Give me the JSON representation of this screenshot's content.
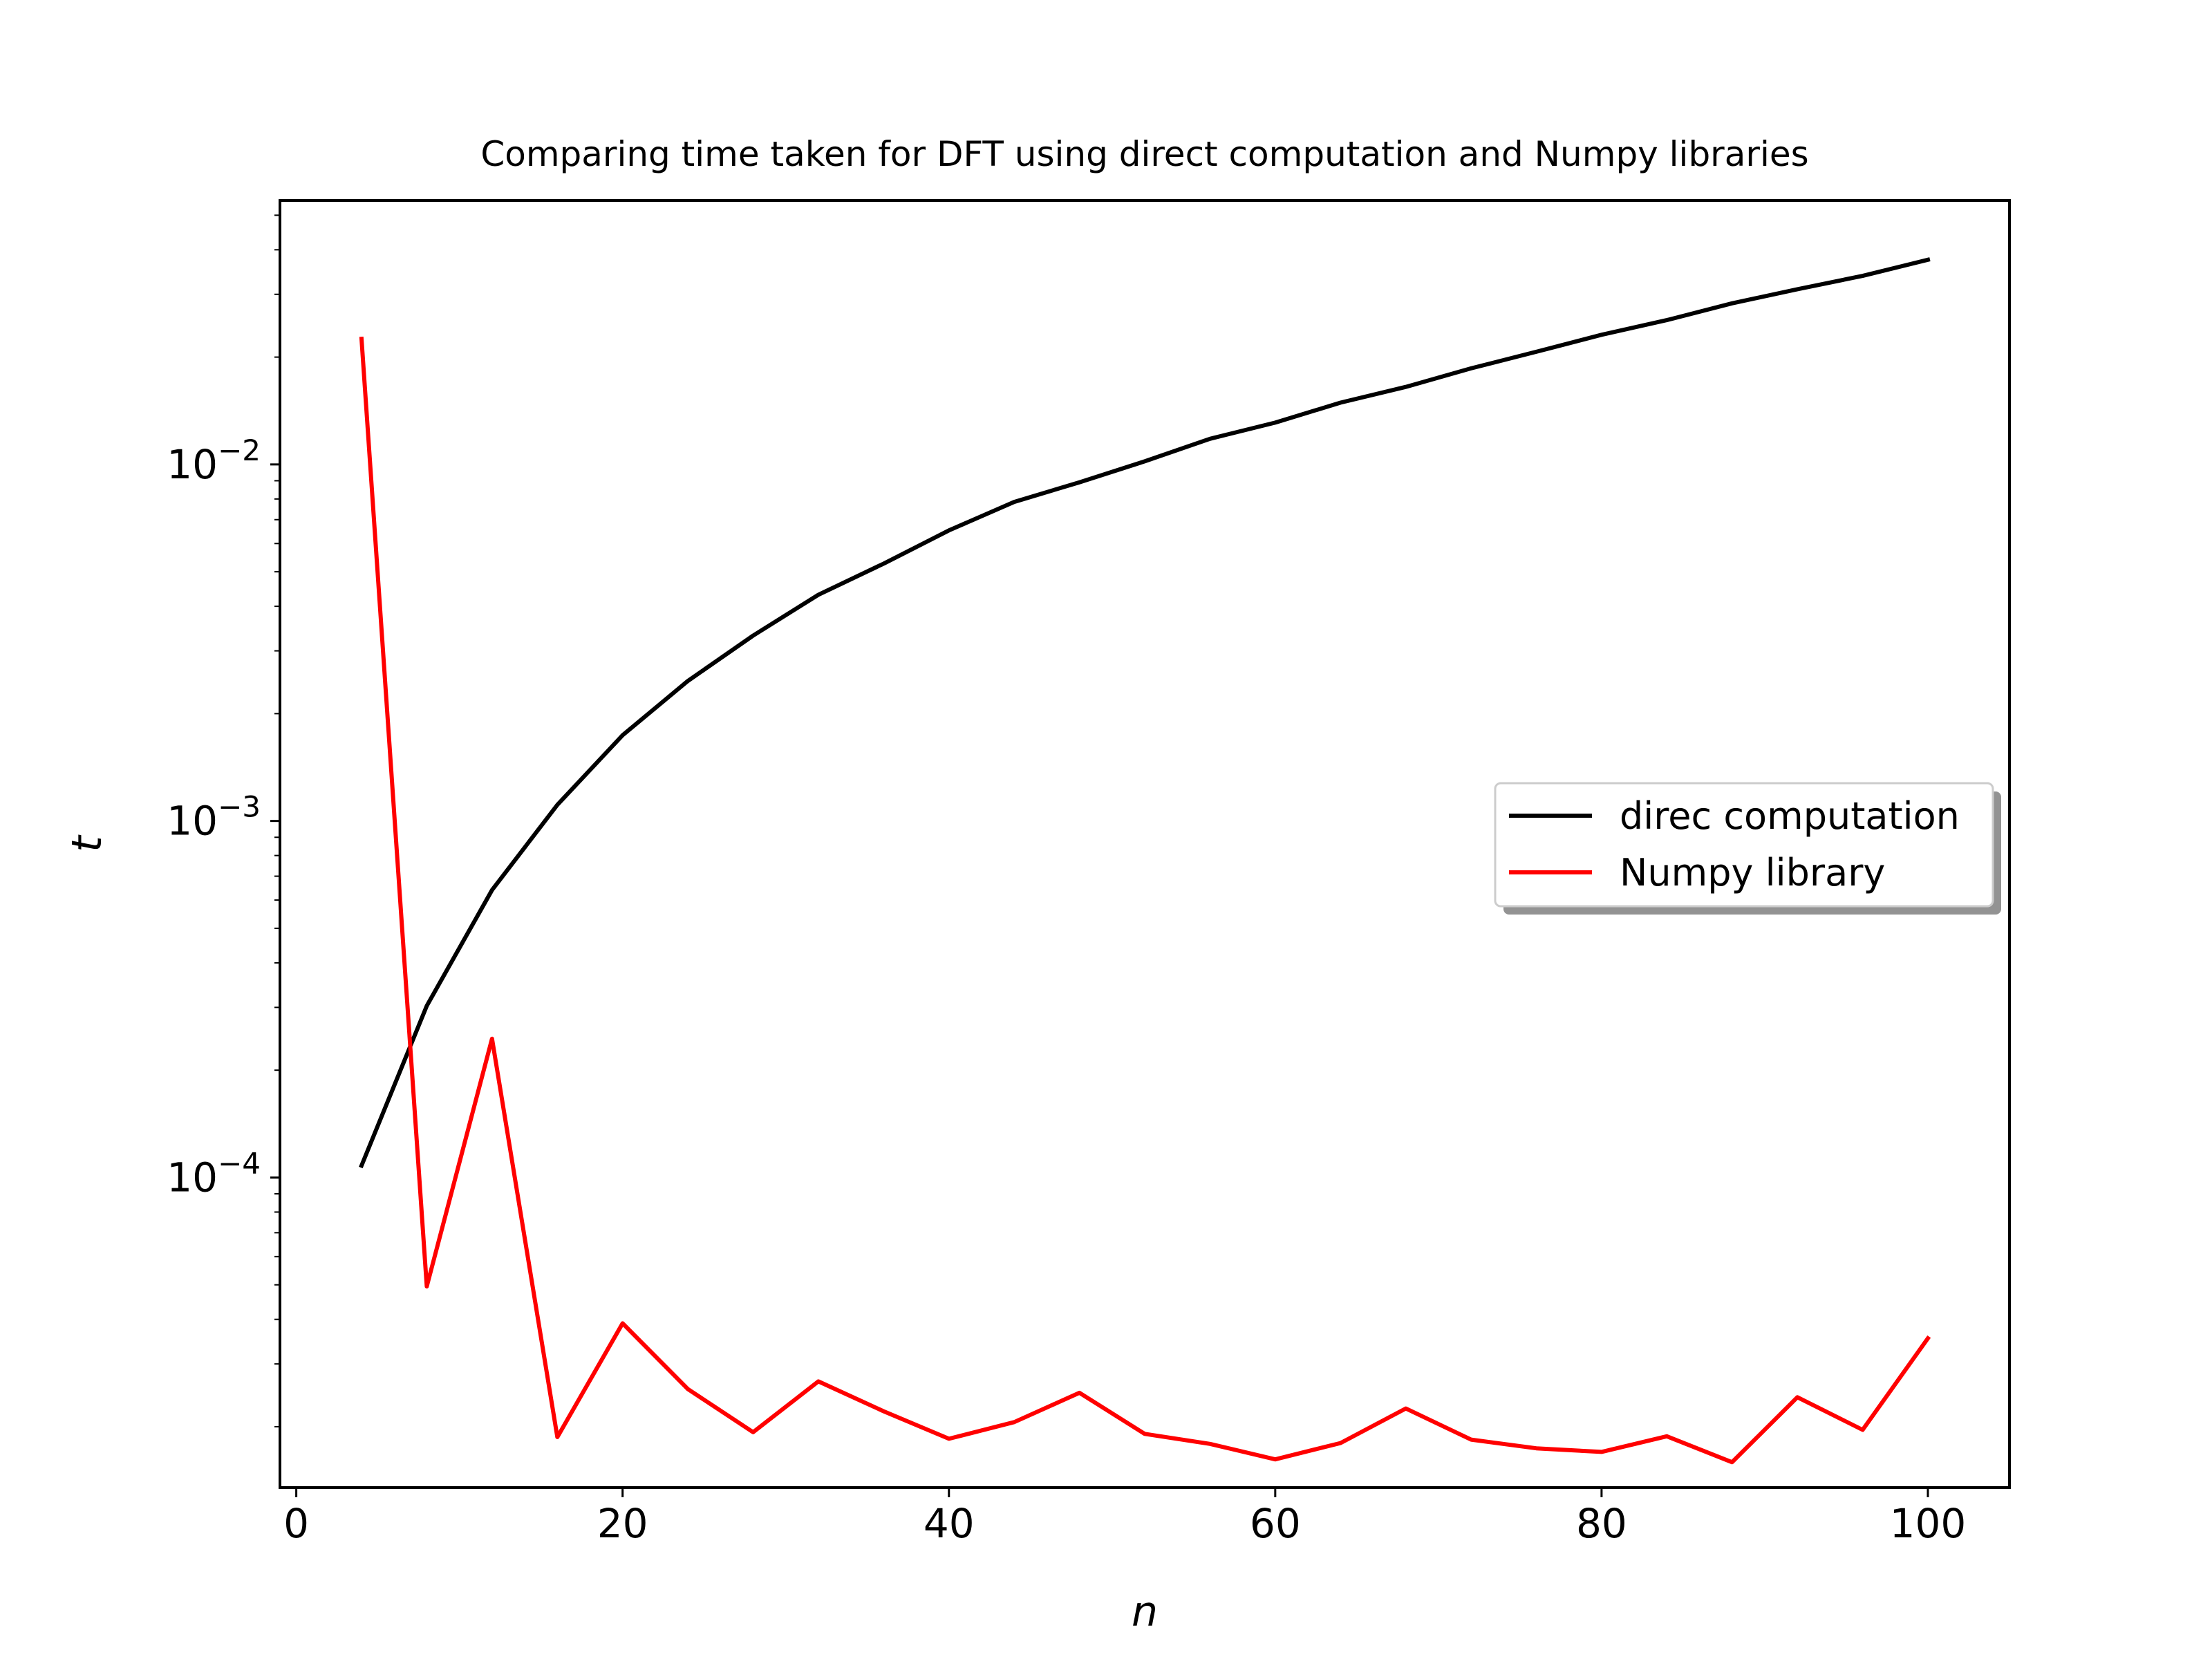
{
  "chart_data": {
    "type": "line",
    "title": "Comparing time taken for DFT using direct computation and Numpy libraries",
    "xlabel": "n",
    "ylabel": "t",
    "xlim": [
      -1,
      105
    ],
    "ylim": [
      1.35e-05,
      0.055
    ],
    "yscale": "log",
    "xticks": [
      0,
      20,
      40,
      60,
      80,
      100
    ],
    "xtick_labels": [
      "0",
      "20",
      "40",
      "60",
      "80",
      "100"
    ],
    "yticks": [
      0.0001,
      0.001,
      0.01
    ],
    "ytick_labels": [
      {
        "base": "10",
        "exp": "−4"
      },
      {
        "base": "10",
        "exp": "−3"
      },
      {
        "base": "10",
        "exp": "−2"
      }
    ],
    "legend_position": "center-right",
    "grid": false,
    "x": [
      4,
      8,
      12,
      16,
      20,
      24,
      28,
      32,
      36,
      40,
      44,
      48,
      52,
      56,
      60,
      64,
      68,
      72,
      76,
      80,
      84,
      88,
      92,
      96,
      100
    ],
    "series": [
      {
        "name": "direc computation",
        "color": "#000000",
        "values": [
          0.000108,
          0.000303,
          0.00064,
          0.00111,
          0.00174,
          0.00247,
          0.00331,
          0.00431,
          0.00527,
          0.00653,
          0.00785,
          0.00891,
          0.0102,
          0.0118,
          0.0131,
          0.0149,
          0.0165,
          0.0186,
          0.0207,
          0.0231,
          0.0254,
          0.0283,
          0.031,
          0.0338,
          0.0375
        ]
      },
      {
        "name": "Numpy library",
        "color": "#ff0000",
        "values": [
          0.0225,
          4.95e-05,
          0.000245,
          1.87e-05,
          3.9e-05,
          2.55e-05,
          1.93e-05,
          2.68e-05,
          2.21e-05,
          1.85e-05,
          2.06e-05,
          2.49e-05,
          1.91e-05,
          1.79e-05,
          1.62e-05,
          1.8e-05,
          2.25e-05,
          1.84e-05,
          1.74e-05,
          1.7e-05,
          1.88e-05,
          1.59e-05,
          2.42e-05,
          1.96e-05,
          3.54e-05
        ]
      }
    ]
  }
}
